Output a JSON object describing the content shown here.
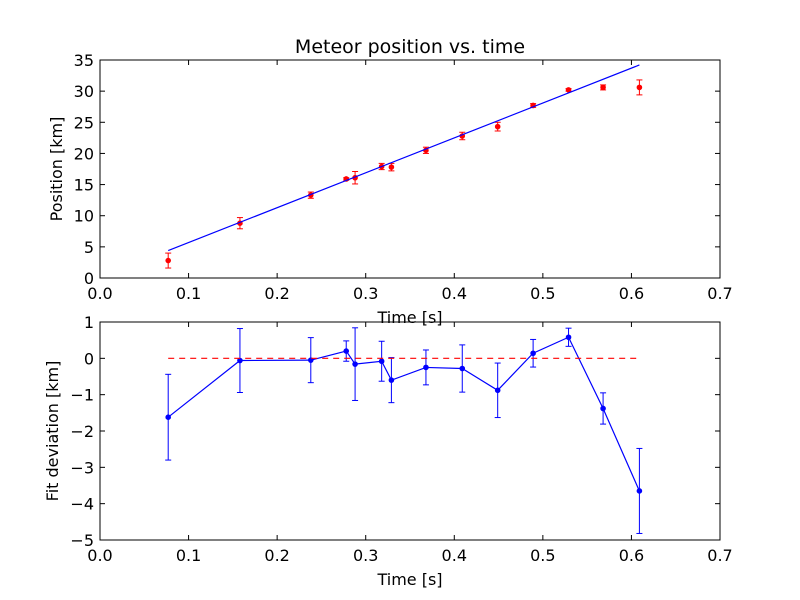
{
  "chart_data": [
    {
      "type": "scatter",
      "title": "Meteor position vs. time",
      "xlabel": "Time [s]",
      "ylabel": "Position [km]",
      "xlim": [
        0.0,
        0.7
      ],
      "ylim": [
        0,
        35
      ],
      "xticks": [
        "0.0",
        "0.1",
        "0.2",
        "0.3",
        "0.4",
        "0.5",
        "0.6",
        "0.7"
      ],
      "yticks": [
        "0",
        "5",
        "10",
        "15",
        "20",
        "25",
        "30",
        "35"
      ],
      "grid": false,
      "colors": {
        "data": "#ff0000",
        "fit": "#0000ff"
      },
      "series": [
        {
          "kind": "errorbar",
          "x": [
            0.077,
            0.158,
            0.238,
            0.278,
            0.288,
            0.318,
            0.329,
            0.368,
            0.409,
            0.449,
            0.489,
            0.529,
            0.568,
            0.609
          ],
          "y": [
            2.8,
            8.8,
            13.3,
            15.9,
            16.1,
            17.9,
            17.8,
            20.5,
            22.8,
            24.3,
            27.7,
            30.2,
            30.6,
            30.6
          ],
          "yerr": [
            1.2,
            0.9,
            0.5,
            0.2,
            1.0,
            0.5,
            0.6,
            0.5,
            0.6,
            0.7,
            0.3,
            0.2,
            0.4,
            1.2
          ]
        },
        {
          "kind": "line",
          "x": [
            0.077,
            0.609
          ],
          "y": [
            4.4,
            34.2
          ]
        }
      ]
    },
    {
      "type": "line",
      "title": "",
      "xlabel": "Time [s]",
      "ylabel": "Fit deviation [km]",
      "xlim": [
        0.0,
        0.7
      ],
      "ylim": [
        -5,
        1
      ],
      "xticks": [
        "0.0",
        "0.1",
        "0.2",
        "0.3",
        "0.4",
        "0.5",
        "0.6",
        "0.7"
      ],
      "yticks": [
        "−5",
        "−4",
        "−3",
        "−2",
        "−1",
        "0",
        "1"
      ],
      "grid": false,
      "colors": {
        "deviation": "#0000ff",
        "zero": "#ff0000"
      },
      "series": [
        {
          "kind": "errorbar-line",
          "x": [
            0.077,
            0.158,
            0.238,
            0.278,
            0.288,
            0.318,
            0.329,
            0.368,
            0.409,
            0.449,
            0.489,
            0.529,
            0.568,
            0.609
          ],
          "y": [
            -1.62,
            -0.06,
            -0.05,
            0.2,
            -0.16,
            -0.08,
            -0.6,
            -0.25,
            -0.28,
            -0.88,
            0.14,
            0.58,
            -1.38,
            -3.65
          ],
          "yerr": [
            1.18,
            0.88,
            0.62,
            0.28,
            1.0,
            0.55,
            0.62,
            0.48,
            0.65,
            0.75,
            0.38,
            0.25,
            0.43,
            1.17
          ]
        },
        {
          "kind": "dashed-line",
          "x": [
            0.077,
            0.609
          ],
          "y": [
            0,
            0
          ]
        }
      ]
    }
  ]
}
